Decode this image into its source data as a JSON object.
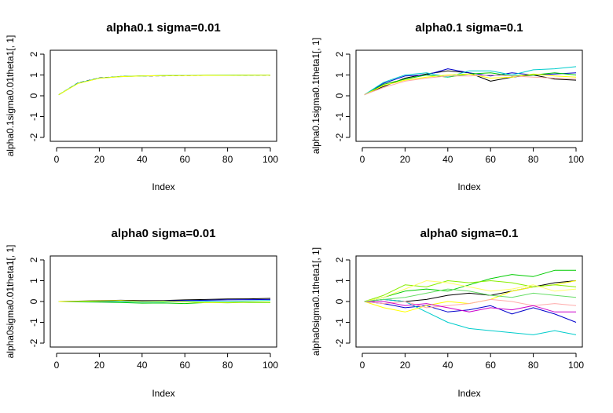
{
  "chart_data": [
    {
      "type": "line",
      "title": "alpha0.1 sigma=0.01",
      "xlabel": "Index",
      "ylabel": "alpha0.1sigma0.01theta1[, 1]",
      "xlim": [
        0,
        100
      ],
      "ylim": [
        -2,
        2
      ],
      "xticks": [
        0,
        20,
        40,
        60,
        80,
        100
      ],
      "yticks": [
        -2,
        -1,
        0,
        1,
        2
      ],
      "x": [
        1,
        10,
        20,
        30,
        40,
        50,
        60,
        70,
        80,
        90,
        100
      ],
      "series": [
        {
          "color": "#000000",
          "dash": "dashed",
          "values": [
            0.05,
            0.62,
            0.86,
            0.93,
            0.95,
            0.96,
            0.97,
            0.98,
            0.98,
            0.99,
            0.99
          ]
        },
        {
          "color": "#00cc00",
          "values": [
            0.05,
            0.6,
            0.85,
            0.93,
            0.96,
            0.97,
            0.98,
            0.99,
            0.99,
            1.0,
            1.0
          ]
        },
        {
          "color": "#00cccc",
          "values": [
            0.05,
            0.61,
            0.85,
            0.92,
            0.95,
            0.97,
            0.98,
            0.98,
            0.99,
            0.99,
            1.0
          ]
        },
        {
          "color": "#ffff00",
          "values": [
            0.05,
            0.59,
            0.84,
            0.92,
            0.95,
            0.97,
            0.97,
            0.98,
            0.98,
            0.99,
            0.99
          ]
        }
      ]
    },
    {
      "type": "line",
      "title": "alpha0.1 sigma=0.1",
      "xlabel": "Index",
      "ylabel": "alpha0.1sigma0.1theta1[, 1]",
      "xlim": [
        0,
        100
      ],
      "ylim": [
        -2,
        2
      ],
      "xticks": [
        0,
        20,
        40,
        60,
        80,
        100
      ],
      "yticks": [
        -2,
        -1,
        0,
        1,
        2
      ],
      "x": [
        1,
        10,
        20,
        30,
        40,
        50,
        60,
        70,
        80,
        90,
        100
      ],
      "series": [
        {
          "color": "#000000",
          "values": [
            0.05,
            0.45,
            0.85,
            1.05,
            1.2,
            1.1,
            0.7,
            0.9,
            1.0,
            0.8,
            0.75
          ]
        },
        {
          "color": "#0000cc",
          "values": [
            0.05,
            0.6,
            0.95,
            1.0,
            1.3,
            1.1,
            0.95,
            1.1,
            1.0,
            1.05,
            1.1
          ]
        },
        {
          "color": "#00cc00",
          "values": [
            0.05,
            0.55,
            0.8,
            1.0,
            0.9,
            1.05,
            1.1,
            0.95,
            1.0,
            1.1,
            1.0
          ]
        },
        {
          "color": "#00cccc",
          "values": [
            0.05,
            0.65,
            1.0,
            1.1,
            0.9,
            1.2,
            1.2,
            1.0,
            1.25,
            1.3,
            1.4
          ]
        },
        {
          "color": "#ffff00",
          "values": [
            0.05,
            0.5,
            0.75,
            0.9,
            1.0,
            1.05,
            0.85,
            0.9,
            1.05,
            0.95,
            0.9
          ]
        },
        {
          "color": "#ffaaaa",
          "values": [
            0.05,
            0.4,
            0.7,
            0.85,
            0.95,
            0.95,
            1.0,
            0.95,
            0.9,
            0.85,
            0.8
          ]
        }
      ]
    },
    {
      "type": "line",
      "title": "alpha0 sigma=0.01",
      "xlabel": "Index",
      "ylabel": "alpha0sigma0.01theta1[, 1]",
      "xlim": [
        0,
        100
      ],
      "ylim": [
        -2,
        2
      ],
      "xticks": [
        0,
        20,
        40,
        60,
        80,
        100
      ],
      "yticks": [
        -2,
        -1,
        0,
        1,
        2
      ],
      "x": [
        1,
        10,
        20,
        30,
        40,
        50,
        60,
        70,
        80,
        90,
        100
      ],
      "series": [
        {
          "color": "#000000",
          "values": [
            0.0,
            0.02,
            0.04,
            0.06,
            0.04,
            0.05,
            0.08,
            0.1,
            0.12,
            0.13,
            0.15
          ]
        },
        {
          "color": "#0000cc",
          "values": [
            0.0,
            0.01,
            -0.02,
            0.0,
            0.02,
            0.03,
            0.05,
            0.06,
            0.08,
            0.09,
            0.1
          ]
        },
        {
          "color": "#00cc00",
          "values": [
            0.0,
            -0.02,
            -0.03,
            -0.05,
            -0.08,
            -0.07,
            -0.1,
            -0.05,
            -0.06,
            -0.04,
            -0.05
          ]
        },
        {
          "color": "#00cccc",
          "values": [
            0.0,
            0.0,
            0.02,
            0.0,
            -0.03,
            -0.02,
            0.0,
            0.02,
            0.0,
            0.03,
            0.05
          ]
        },
        {
          "color": "#ffff00",
          "values": [
            0.0,
            0.01,
            0.03,
            0.05,
            0.0,
            0.02,
            -0.02,
            -0.05,
            -0.05,
            -0.03,
            -0.03
          ]
        }
      ]
    },
    {
      "type": "line",
      "title": "alpha0 sigma=0.1",
      "xlabel": "Index",
      "ylabel": "alpha0sigma0.1theta1[, 1]",
      "xlim": [
        0,
        100
      ],
      "ylim": [
        -2,
        2
      ],
      "xticks": [
        0,
        20,
        40,
        60,
        80,
        100
      ],
      "yticks": [
        -2,
        -1,
        0,
        1,
        2
      ],
      "x": [
        1,
        10,
        20,
        30,
        40,
        50,
        60,
        70,
        80,
        90,
        100
      ],
      "series": [
        {
          "color": "#000000",
          "values": [
            0.0,
            0.1,
            0.0,
            0.1,
            0.3,
            0.4,
            0.3,
            0.5,
            0.7,
            0.9,
            1.0
          ]
        },
        {
          "color": "#0000cc",
          "values": [
            0.0,
            -0.1,
            -0.3,
            -0.2,
            -0.5,
            -0.4,
            -0.2,
            -0.6,
            -0.3,
            -0.6,
            -1.0
          ]
        },
        {
          "color": "#00cc00",
          "values": [
            0.0,
            0.2,
            0.5,
            0.6,
            0.5,
            0.8,
            1.1,
            1.3,
            1.2,
            1.5,
            1.5
          ]
        },
        {
          "color": "#00cccc",
          "values": [
            0.0,
            0.1,
            0.0,
            -0.5,
            -1.0,
            -1.3,
            -1.4,
            -1.5,
            -1.6,
            -1.4,
            -1.6
          ]
        },
        {
          "color": "#ffff00",
          "values": [
            0.0,
            -0.3,
            -0.5,
            -0.2,
            0.0,
            -0.1,
            0.1,
            0.5,
            0.7,
            0.8,
            1.0
          ]
        },
        {
          "color": "#88ee00",
          "values": [
            0.0,
            0.3,
            0.8,
            0.7,
            1.0,
            0.9,
            1.0,
            0.9,
            0.7,
            0.8,
            0.7
          ]
        },
        {
          "color": "#ffff66",
          "values": [
            0.0,
            0.2,
            0.6,
            1.0,
            0.9,
            0.7,
            0.5,
            0.6,
            0.8,
            0.5,
            0.6
          ]
        },
        {
          "color": "#ffaaaa",
          "values": [
            0.0,
            -0.1,
            0.0,
            -0.3,
            -0.2,
            -0.1,
            0.1,
            0.0,
            -0.2,
            -0.1,
            -0.2
          ]
        },
        {
          "color": "#cc00cc",
          "values": [
            0.0,
            0.0,
            -0.2,
            -0.1,
            -0.3,
            -0.5,
            -0.3,
            -0.4,
            -0.2,
            -0.5,
            -0.5
          ]
        },
        {
          "color": "#66dd66",
          "values": [
            0.0,
            0.1,
            0.2,
            0.4,
            0.6,
            0.5,
            0.3,
            0.2,
            0.4,
            0.3,
            0.2
          ]
        }
      ]
    }
  ]
}
